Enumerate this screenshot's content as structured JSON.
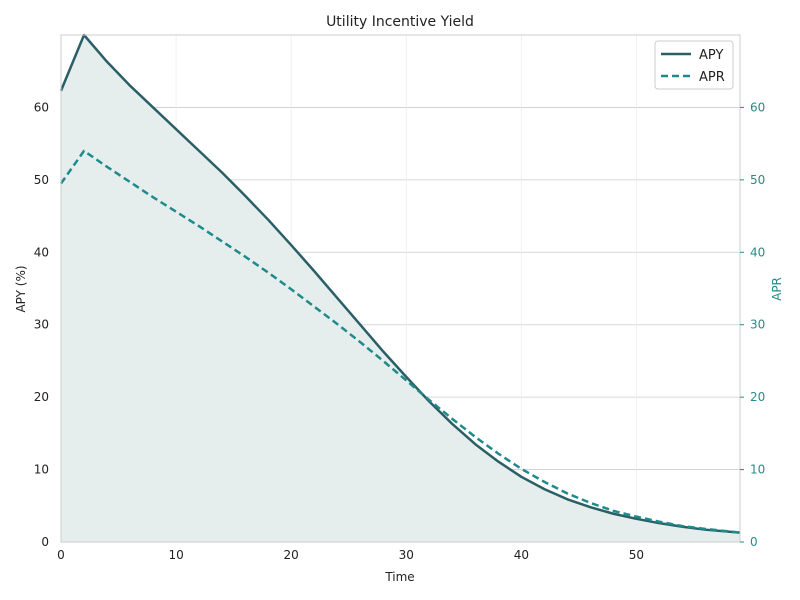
{
  "chart_data": {
    "type": "line",
    "title": "Utility Incentive Yield",
    "xlabel": "Time",
    "ylabel": "APY (%)",
    "y2label": "APR",
    "xlim": [
      0,
      59
    ],
    "ylim": [
      0,
      70
    ],
    "y2lim": [
      0,
      70
    ],
    "xticks": [
      0,
      10,
      20,
      30,
      40,
      50
    ],
    "yticks": [
      0,
      10,
      20,
      30,
      40,
      50,
      60
    ],
    "y2ticks": [
      0,
      10,
      20,
      30,
      40,
      50,
      60
    ],
    "grid": true,
    "legend_position": "top-right",
    "colors": {
      "apy": "#2a5f66",
      "apr": "#1f8a8a",
      "fill": "#e6eeed",
      "grid": "#cccccc",
      "right_axis": "#2a8a8a"
    },
    "series": [
      {
        "name": "APY",
        "style": "solid",
        "axis": "left",
        "fill": true,
        "x": [
          0,
          2,
          4,
          6,
          8,
          10,
          12,
          14,
          16,
          18,
          20,
          22,
          24,
          26,
          28,
          30,
          32,
          34,
          36,
          38,
          40,
          42,
          44,
          46,
          48,
          50,
          52,
          54,
          56,
          59
        ],
        "values": [
          62.3,
          70.0,
          66.3,
          63.0,
          60.0,
          57.0,
          54.0,
          51.0,
          47.8,
          44.5,
          41.0,
          37.4,
          33.7,
          30.0,
          26.3,
          22.8,
          19.4,
          16.3,
          13.5,
          11.1,
          9.0,
          7.3,
          5.9,
          4.8,
          3.9,
          3.2,
          2.6,
          2.1,
          1.7,
          1.3
        ]
      },
      {
        "name": "APR",
        "style": "dashed",
        "axis": "right",
        "fill": false,
        "x": [
          0,
          2,
          4,
          6,
          8,
          10,
          12,
          14,
          16,
          18,
          20,
          22,
          24,
          26,
          28,
          30,
          32,
          34,
          36,
          38,
          40,
          42,
          44,
          46,
          48,
          50,
          52,
          54,
          56,
          59
        ],
        "values": [
          49.5,
          54.0,
          51.8,
          49.7,
          47.6,
          45.6,
          43.6,
          41.5,
          39.4,
          37.2,
          34.9,
          32.5,
          30.1,
          27.6,
          25.0,
          22.3,
          19.6,
          17.0,
          14.5,
          12.2,
          10.1,
          8.3,
          6.7,
          5.4,
          4.3,
          3.5,
          2.8,
          2.2,
          1.8,
          1.3
        ]
      }
    ]
  }
}
